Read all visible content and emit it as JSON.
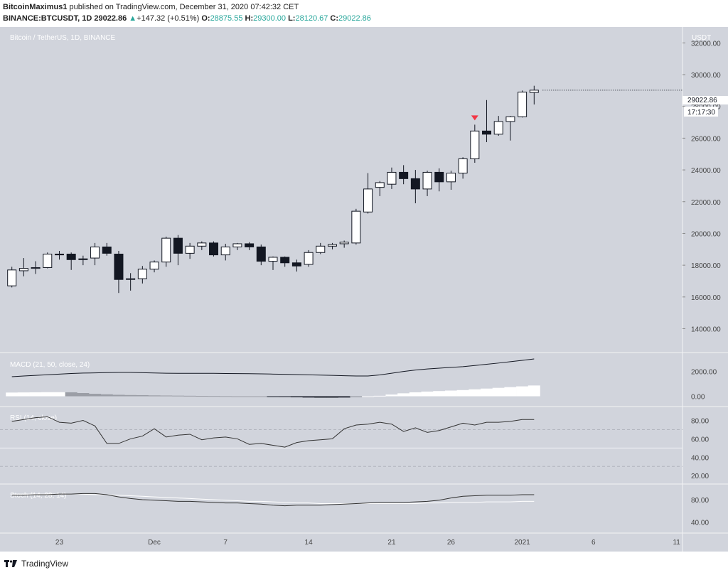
{
  "header": {
    "author": "BitcoinMaximus1",
    "published_text": "published on TradingView.com, December 31, 2020 07:42:32 CET",
    "symbol": "BINANCE:BTCUSDT, 1D",
    "last_price": "29022.86",
    "change_arrow": "▲",
    "change": "+147.32 (+0.51%)",
    "o_label": "O:",
    "o_value": "28875.55",
    "h_label": "H:",
    "h_value": "29300.00",
    "l_label": "L:",
    "l_value": "28120.67",
    "c_label": "C:",
    "c_value": "29022.86"
  },
  "footer": {
    "brand": "TradingView",
    "logo_icon": "tradingview-logo-icon"
  },
  "colors": {
    "background": "#d1d4dc",
    "candle_up": "#ffffff",
    "candle_down": "#131722",
    "rsi_line": "#333333",
    "stoch_k": "#333333",
    "stoch_d": "#ffffff",
    "marker": "#f23645",
    "hist_light": "#ffffff",
    "hist_grey": "#9b9ea6",
    "hist_dark": "#131722"
  },
  "chart_data": {
    "type": "candlestick",
    "title": "Bitcoin / TetherUS, 1D, BINANCE",
    "currency": "USDT",
    "ylim": [
      12500,
      33000
    ],
    "y_ticks": [
      14000,
      16000,
      18000,
      20000,
      22000,
      24000,
      26000,
      28000,
      30000,
      32000
    ],
    "y_tick_labels": [
      "14000.00",
      "16000.00",
      "18000.00",
      "20000.00",
      "22000.00",
      "24000.00",
      "26000.00",
      "28000.00",
      "30000.00",
      "32000.00"
    ],
    "last_price_label": "29022.86",
    "countdown_label": "17:17:30",
    "x_tick_labels": [
      {
        "day": 4,
        "label": "23"
      },
      {
        "day": 12,
        "label": "Dec"
      },
      {
        "day": 18,
        "label": "7"
      },
      {
        "day": 25,
        "label": "14"
      },
      {
        "day": 32,
        "label": "21"
      },
      {
        "day": 37,
        "label": "26"
      },
      {
        "day": 43,
        "label": "2021"
      },
      {
        "day": 49,
        "label": "6"
      },
      {
        "day": 56,
        "label": "11"
      }
    ],
    "x_range": [
      -1,
      56.5
    ],
    "candles": [
      {
        "o": 16700,
        "h": 17900,
        "l": 16600,
        "c": 17700
      },
      {
        "o": 17650,
        "h": 18450,
        "l": 17300,
        "c": 17800
      },
      {
        "o": 17800,
        "h": 18250,
        "l": 17450,
        "c": 17850
      },
      {
        "o": 17850,
        "h": 18800,
        "l": 17800,
        "c": 18700
      },
      {
        "o": 18700,
        "h": 18900,
        "l": 18350,
        "c": 18650
      },
      {
        "o": 18700,
        "h": 18800,
        "l": 17700,
        "c": 18350
      },
      {
        "o": 18400,
        "h": 18600,
        "l": 18000,
        "c": 18350
      },
      {
        "o": 18450,
        "h": 19400,
        "l": 18000,
        "c": 19150
      },
      {
        "o": 19150,
        "h": 19400,
        "l": 18600,
        "c": 18750
      },
      {
        "o": 18700,
        "h": 18900,
        "l": 16250,
        "c": 17100
      },
      {
        "o": 17100,
        "h": 17500,
        "l": 16400,
        "c": 17150
      },
      {
        "o": 17150,
        "h": 17950,
        "l": 16850,
        "c": 17750
      },
      {
        "o": 17750,
        "h": 18300,
        "l": 17550,
        "c": 18200
      },
      {
        "o": 18200,
        "h": 19800,
        "l": 17900,
        "c": 19700
      },
      {
        "o": 19700,
        "h": 19900,
        "l": 18000,
        "c": 18750
      },
      {
        "o": 18750,
        "h": 19400,
        "l": 18400,
        "c": 19200
      },
      {
        "o": 19200,
        "h": 19500,
        "l": 18950,
        "c": 19400
      },
      {
        "o": 19400,
        "h": 19500,
        "l": 18550,
        "c": 18650
      },
      {
        "o": 18650,
        "h": 19350,
        "l": 18300,
        "c": 19150
      },
      {
        "o": 19150,
        "h": 19400,
        "l": 18950,
        "c": 19350
      },
      {
        "o": 19350,
        "h": 19450,
        "l": 18950,
        "c": 19150
      },
      {
        "o": 19150,
        "h": 19300,
        "l": 18000,
        "c": 18250
      },
      {
        "o": 18250,
        "h": 18550,
        "l": 17700,
        "c": 18500
      },
      {
        "o": 18500,
        "h": 18550,
        "l": 17900,
        "c": 18150
      },
      {
        "o": 18150,
        "h": 18350,
        "l": 17600,
        "c": 17950
      },
      {
        "o": 18050,
        "h": 18950,
        "l": 17900,
        "c": 18800
      },
      {
        "o": 18800,
        "h": 19400,
        "l": 18700,
        "c": 19200
      },
      {
        "o": 19200,
        "h": 19400,
        "l": 19000,
        "c": 19300
      },
      {
        "o": 19350,
        "h": 19550,
        "l": 19100,
        "c": 19450
      },
      {
        "o": 19400,
        "h": 21550,
        "l": 19300,
        "c": 21400
      },
      {
        "o": 21350,
        "h": 23800,
        "l": 21250,
        "c": 22800
      },
      {
        "o": 22900,
        "h": 23300,
        "l": 22350,
        "c": 23200
      },
      {
        "o": 23100,
        "h": 24150,
        "l": 22800,
        "c": 23850
      },
      {
        "o": 23850,
        "h": 24300,
        "l": 23100,
        "c": 23450
      },
      {
        "o": 23450,
        "h": 24000,
        "l": 21900,
        "c": 22800
      },
      {
        "o": 22800,
        "h": 23950,
        "l": 22350,
        "c": 23850
      },
      {
        "o": 23850,
        "h": 24100,
        "l": 22650,
        "c": 23250
      },
      {
        "o": 23250,
        "h": 23950,
        "l": 22750,
        "c": 23800
      },
      {
        "o": 23800,
        "h": 24800,
        "l": 23450,
        "c": 24700
      },
      {
        "o": 24700,
        "h": 26850,
        "l": 24450,
        "c": 26450
      },
      {
        "o": 26450,
        "h": 28400,
        "l": 25750,
        "c": 26250
      },
      {
        "o": 26250,
        "h": 27400,
        "l": 26150,
        "c": 27050
      },
      {
        "o": 27050,
        "h": 27400,
        "l": 25850,
        "c": 27350
      },
      {
        "o": 27350,
        "h": 29000,
        "l": 27300,
        "c": 28900
      },
      {
        "o": 28875.55,
        "h": 29300,
        "l": 28120.67,
        "c": 29022.86
      }
    ],
    "marker_day": 39,
    "macd": {
      "label": "MACD (21, 50, close, 24)",
      "ylim": [
        -600,
        3300
      ],
      "y_ticks": [
        0,
        2000
      ],
      "y_tick_labels": [
        "0.00",
        "2000.00"
      ],
      "line": [
        1580,
        1640,
        1690,
        1740,
        1790,
        1840,
        1870,
        1890,
        1910,
        1920,
        1920,
        1900,
        1880,
        1860,
        1850,
        1850,
        1850,
        1850,
        1840,
        1830,
        1820,
        1810,
        1790,
        1770,
        1750,
        1730,
        1710,
        1690,
        1660,
        1640,
        1640,
        1720,
        1860,
        2000,
        2120,
        2200,
        2270,
        2330,
        2390,
        2480,
        2580,
        2680,
        2790,
        2900,
        3010
      ],
      "hist": [
        300,
        310,
        320,
        330,
        330,
        320,
        260,
        200,
        160,
        120,
        100,
        90,
        70,
        60,
        50,
        40,
        30,
        20,
        10,
        0,
        -10,
        -20,
        -40,
        -60,
        -80,
        -100,
        -110,
        -110,
        -100,
        -80,
        -40,
        40,
        140,
        240,
        320,
        380,
        420,
        460,
        500,
        560,
        620,
        680,
        740,
        800,
        870
      ],
      "hist_shade": [
        "l",
        "l",
        "l",
        "l",
        "l",
        "g",
        "g",
        "g",
        "g",
        "g",
        "g",
        "g",
        "g",
        "g",
        "g",
        "g",
        "g",
        "g",
        "g",
        "g",
        "g",
        "g",
        "d",
        "d",
        "d",
        "d",
        "d",
        "d",
        "d",
        "g",
        "l",
        "l",
        "l",
        "l",
        "l",
        "l",
        "l",
        "l",
        "l",
        "l",
        "l",
        "l",
        "l",
        "l",
        "l"
      ]
    },
    "rsi": {
      "label": "RSI (14, close)",
      "ylim": [
        14,
        92
      ],
      "y_ticks": [
        20,
        40,
        60,
        80
      ],
      "y_tick_labels": [
        "20.00",
        "40.00",
        "60.00",
        "80.00"
      ],
      "bands": [
        30,
        50,
        70
      ],
      "values": [
        79,
        81,
        83,
        84,
        78,
        77,
        80,
        74,
        55,
        55,
        60,
        63,
        71,
        62,
        64,
        65,
        59,
        61,
        62,
        60,
        54,
        55,
        53,
        51,
        56,
        58,
        59,
        60,
        71,
        75,
        76,
        78,
        76,
        68,
        72,
        67,
        69,
        73,
        77,
        75,
        78,
        78,
        79,
        81,
        81
      ]
    },
    "stoch": {
      "label": "Stoch (14, 28, 14)",
      "ylim": [
        25,
        103
      ],
      "y_ticks": [
        40,
        80
      ],
      "y_tick_labels": [
        "40.00",
        "80.00"
      ],
      "k": [
        88,
        88,
        89,
        89,
        90,
        90,
        91,
        91,
        89,
        85,
        82,
        80,
        79,
        78,
        77,
        77,
        76,
        75,
        74,
        74,
        73,
        72,
        70,
        69,
        70,
        70,
        70,
        71,
        72,
        73,
        74,
        75,
        75,
        75,
        76,
        77,
        79,
        83,
        86,
        87,
        88,
        88,
        88,
        89,
        89
      ],
      "d": [
        90,
        90,
        90,
        90,
        90,
        90,
        90,
        89,
        89,
        88,
        87,
        86,
        85,
        84,
        83,
        82,
        81,
        80,
        79,
        78,
        77,
        77,
        76,
        75,
        74,
        74,
        73,
        73,
        73,
        73,
        73,
        73,
        73,
        73,
        73,
        74,
        74,
        75,
        75,
        75,
        76,
        76,
        76,
        77,
        77
      ]
    }
  }
}
